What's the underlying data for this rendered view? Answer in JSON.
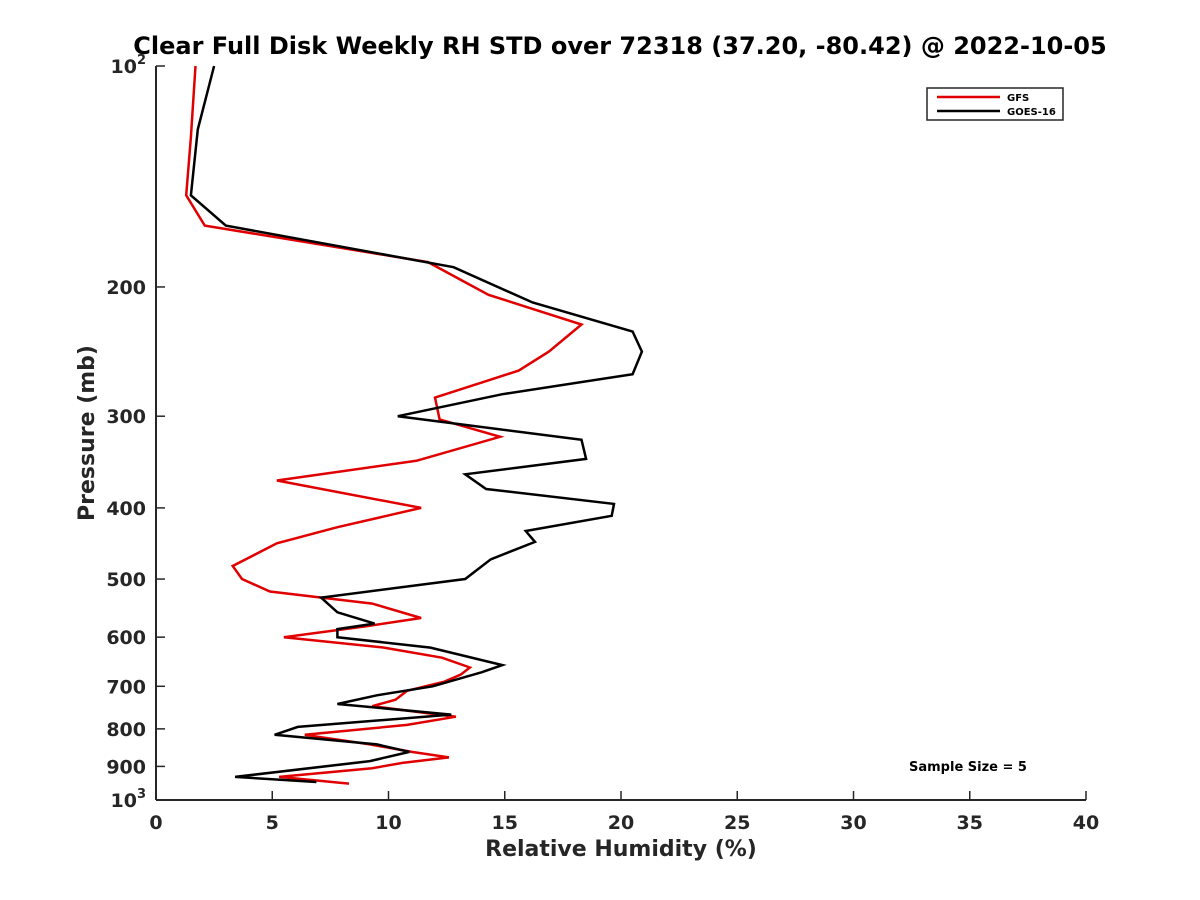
{
  "chart_data": {
    "type": "line",
    "title": "Clear Full Disk Weekly RH STD over 72318 (37.20, -80.42) @ 2022-10-05",
    "xlabel": "Relative Humidity (%)",
    "ylabel": "Pressure (mb)",
    "xlim": [
      0,
      40
    ],
    "ylim": [
      100,
      1000
    ],
    "y_scale": "log",
    "y_reversed": true,
    "x_ticks": [
      "0",
      "5",
      "10",
      "15",
      "20",
      "25",
      "30",
      "35",
      "40"
    ],
    "y_ticks": [
      {
        "value": 100,
        "label": "10",
        "sup": "2"
      },
      {
        "value": 200,
        "label": "200",
        "sup": ""
      },
      {
        "value": 300,
        "label": "300",
        "sup": ""
      },
      {
        "value": 400,
        "label": "400",
        "sup": ""
      },
      {
        "value": 500,
        "label": "500",
        "sup": ""
      },
      {
        "value": 600,
        "label": "600",
        "sup": ""
      },
      {
        "value": 700,
        "label": "700",
        "sup": ""
      },
      {
        "value": 800,
        "label": "800",
        "sup": ""
      },
      {
        "value": 900,
        "label": "900",
        "sup": ""
      },
      {
        "value": 1000,
        "label": "10",
        "sup": "3"
      }
    ],
    "grid": false,
    "legend_position": "top-right",
    "annotation": "Sample Size = 5",
    "series": [
      {
        "name": "GFS",
        "color": "#e00000",
        "points": [
          [
            1.7,
            100
          ],
          [
            1.5,
            125
          ],
          [
            1.3,
            150
          ],
          [
            2.1,
            165
          ],
          [
            11.7,
            185
          ],
          [
            14.3,
            205
          ],
          [
            18.3,
            225
          ],
          [
            16.9,
            245
          ],
          [
            15.6,
            260
          ],
          [
            12.0,
            283
          ],
          [
            12.2,
            303
          ],
          [
            14.8,
            320
          ],
          [
            11.2,
            345
          ],
          [
            5.2,
            367
          ],
          [
            11.4,
            400
          ],
          [
            7.8,
            425
          ],
          [
            5.2,
            447
          ],
          [
            3.3,
            480
          ],
          [
            3.7,
            500
          ],
          [
            4.9,
            520
          ],
          [
            9.3,
            540
          ],
          [
            11.4,
            565
          ],
          [
            9.0,
            580
          ],
          [
            5.5,
            600
          ],
          [
            9.8,
            620
          ],
          [
            12.3,
            640
          ],
          [
            13.5,
            660
          ],
          [
            13.1,
            675
          ],
          [
            12.4,
            690
          ],
          [
            10.8,
            710
          ],
          [
            10.3,
            730
          ],
          [
            9.3,
            745
          ],
          [
            12.9,
            770
          ],
          [
            10.8,
            790
          ],
          [
            6.4,
            815
          ],
          [
            9.2,
            840
          ],
          [
            11.0,
            860
          ],
          [
            12.6,
            875
          ],
          [
            10.6,
            890
          ],
          [
            9.3,
            905
          ],
          [
            5.3,
            930
          ],
          [
            8.3,
            950
          ]
        ]
      },
      {
        "name": "GOES-16",
        "color": "#000000",
        "points": [
          [
            2.5,
            100
          ],
          [
            1.8,
            122
          ],
          [
            1.5,
            150
          ],
          [
            3.0,
            165
          ],
          [
            12.8,
            188
          ],
          [
            16.2,
            210
          ],
          [
            20.5,
            230
          ],
          [
            20.9,
            245
          ],
          [
            20.5,
            263
          ],
          [
            14.9,
            280
          ],
          [
            10.4,
            300
          ],
          [
            18.3,
            323
          ],
          [
            18.5,
            343
          ],
          [
            13.3,
            360
          ],
          [
            14.2,
            377
          ],
          [
            19.7,
            395
          ],
          [
            19.6,
            410
          ],
          [
            15.9,
            430
          ],
          [
            16.3,
            445
          ],
          [
            14.4,
            470
          ],
          [
            13.3,
            500
          ],
          [
            7.1,
            530
          ],
          [
            7.8,
            555
          ],
          [
            9.4,
            575
          ],
          [
            7.8,
            585
          ],
          [
            7.8,
            600
          ],
          [
            11.8,
            620
          ],
          [
            14.9,
            655
          ],
          [
            14.0,
            670
          ],
          [
            11.9,
            700
          ],
          [
            9.5,
            720
          ],
          [
            7.8,
            740
          ],
          [
            12.7,
            765
          ],
          [
            6.1,
            795
          ],
          [
            5.1,
            815
          ],
          [
            9.5,
            840
          ],
          [
            10.9,
            860
          ],
          [
            9.2,
            885
          ],
          [
            3.4,
            930
          ],
          [
            6.9,
            945
          ]
        ]
      }
    ]
  }
}
